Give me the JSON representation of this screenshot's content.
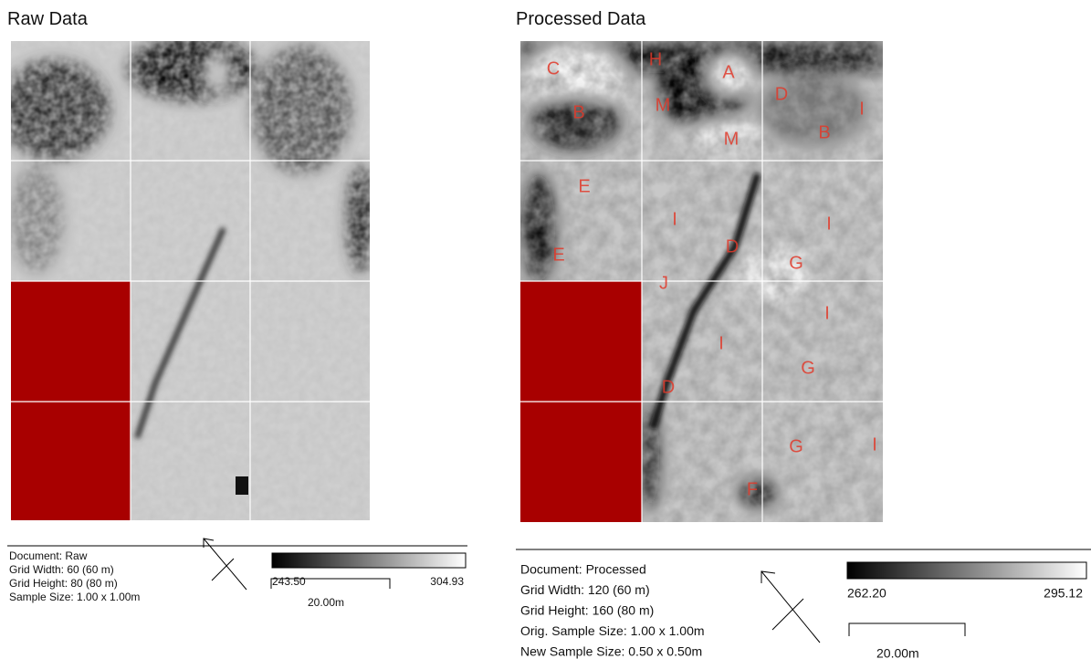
{
  "panels": [
    {
      "title": "Raw Data",
      "info": [
        "Document: Raw",
        "Grid Width: 60 (60 m)",
        "Grid Height: 80 (80 m)",
        "Sample Size: 1.00 x 1.00m"
      ],
      "colorbar": {
        "min_label": "243.50",
        "max_label": "304.93"
      },
      "scale_bar": "20.00m"
    },
    {
      "title": "Processed Data",
      "annotations": [
        "C",
        "H",
        "A",
        "M",
        "D",
        "I",
        "B",
        "M",
        "B",
        "E",
        "I",
        "D",
        "I",
        "E",
        "G",
        "J",
        "I",
        "I",
        "G",
        "D",
        "G",
        "I",
        "F"
      ],
      "info": [
        "Document: Processed",
        "Grid Width: 120 (60 m)",
        "Grid Height: 160 (80 m)",
        "Orig. Sample Size: 1.00 x 1.00m",
        "New Sample Size: 0.50 x 0.50m"
      ],
      "colorbar": {
        "min_label": "262.20",
        "max_label": "295.12"
      },
      "scale_bar": "20.00m"
    }
  ]
}
